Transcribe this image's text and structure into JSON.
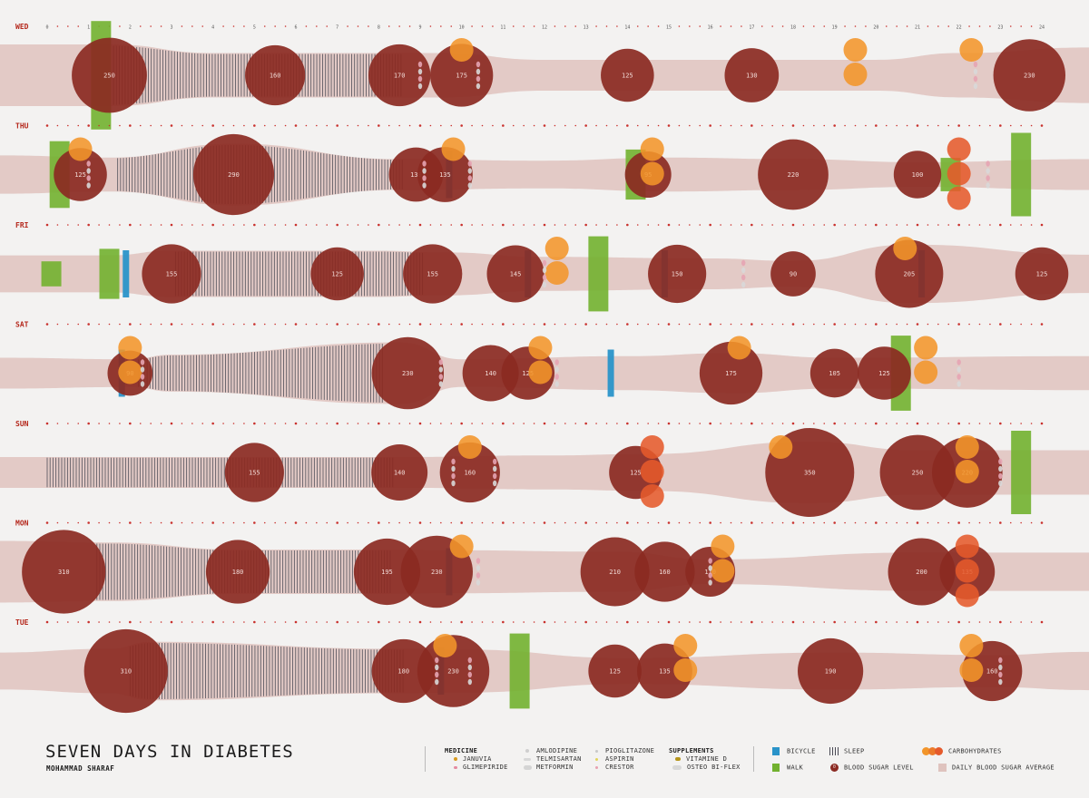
{
  "title": "SEVEN DAYS IN DIABETES",
  "author": "MOHAMMAD SHARAF",
  "legend": {
    "medicine_head": "MEDICINE",
    "januvia": "JANUVIA",
    "glimepiride": "GLIMEPIRIDE",
    "amlodipine": "AMLODIPINE",
    "telmisartan": "TELMISARTAN",
    "metformin": "METFORMIN",
    "pioglitazone": "PIOGLITAZONE",
    "aspirin": "ASPIRIN",
    "crestor": "CRESTOR",
    "supplements_head": "SUPPLEMENTS",
    "vitamin_d": "VITAMINE D",
    "osteo": "OSTEO BI-FLEX",
    "bicycle": "BICYCLE",
    "walk": "WALK",
    "sleep": "SLEEP",
    "blood_sugar": "BLOOD SUGAR LEVEL",
    "blood_sugar_marker": "0",
    "carbs": "CARBOHYDRATES",
    "daily_avg": "DAILY BLOOD SUGAR AVERAGE"
  },
  "colors": {
    "background": "#f3f2f1",
    "blood_sugar": "#8b2a22",
    "average_band": "#dfc3be",
    "sleep": "#4a4a55",
    "bicycle": "#2a93c9",
    "walk": "#72b12f",
    "carbs": "#f2952a",
    "carbs_dark": "#e55a2b",
    "day_label": "#b5281c",
    "hour_dot": "#c9302c"
  },
  "chart_data": {
    "type": "timeline",
    "x_unit": "hour of day",
    "xlim": [
      0,
      24
    ],
    "hour_ticks": [
      "0",
      "1",
      "2",
      "3",
      "4",
      "5",
      "6",
      "7",
      "8",
      "9",
      "10",
      "11",
      "12",
      "13",
      "14",
      "15",
      "16",
      "17",
      "18",
      "19",
      "20",
      "21",
      "22",
      "23",
      "24"
    ],
    "days": [
      {
        "label": "WED",
        "blood_sugar": [
          [
            1.5,
            250
          ],
          [
            5.5,
            160
          ],
          [
            8.5,
            170
          ],
          [
            10,
            175
          ],
          [
            14,
            125
          ],
          [
            17,
            130
          ],
          [
            23.7,
            230
          ]
        ],
        "average_band": [
          [
            0,
            1.0
          ],
          [
            1.5,
            1.0
          ],
          [
            4,
            0.72
          ],
          [
            8,
            0.72
          ],
          [
            9.5,
            0.72
          ],
          [
            12,
            0.5
          ],
          [
            18,
            0.5
          ],
          [
            20,
            0.5
          ],
          [
            22,
            0.72
          ],
          [
            24,
            0.9
          ]
        ],
        "sleep": [
          1.6,
          8.6
        ],
        "carbs": [
          [
            10,
            1
          ],
          [
            19.5,
            2
          ],
          [
            22.3,
            1
          ]
        ],
        "walk": [
          [
            1.3,
            1.3
          ]
        ],
        "bicycle": [],
        "medicine": [
          9,
          10.4,
          22.4
        ]
      },
      {
        "label": "THU",
        "blood_sugar": [
          [
            0.8,
            125
          ],
          [
            4.5,
            290
          ],
          [
            8.9,
            130
          ],
          [
            9.6,
            135
          ],
          [
            14.5,
            95
          ],
          [
            18,
            220
          ],
          [
            21,
            100
          ]
        ],
        "average_band": [
          [
            0,
            0.62
          ],
          [
            1.5,
            0.55
          ],
          [
            4.5,
            1.0
          ],
          [
            8.5,
            0.5
          ],
          [
            12,
            0.45
          ],
          [
            15,
            0.55
          ],
          [
            18,
            0.5
          ],
          [
            21,
            0.4
          ],
          [
            24,
            0.5
          ]
        ],
        "sleep": [
          1.7,
          8.6
        ],
        "carbs": [
          [
            0.8,
            1
          ],
          [
            9.8,
            1
          ],
          [
            14.6,
            2
          ],
          [
            22,
            3
          ]
        ],
        "walk": [
          [
            0.3,
            0.8
          ],
          [
            14.2,
            0.6
          ],
          [
            21.8,
            0.4
          ],
          [
            23.5,
            1.0
          ]
        ],
        "bicycle": [
          [
            9.7
          ]
        ],
        "medicine": [
          1,
          9.1,
          10.2,
          22.7
        ]
      },
      {
        "label": "FRI",
        "blood_sugar": [
          [
            3,
            155
          ],
          [
            7,
            125
          ],
          [
            9.3,
            155
          ],
          [
            11.3,
            145
          ],
          [
            15.2,
            150
          ],
          [
            18,
            90
          ],
          [
            20.8,
            205
          ],
          [
            24,
            125
          ]
        ],
        "average_band": [
          [
            0,
            0.6
          ],
          [
            1.5,
            0.6
          ],
          [
            3,
            0.75
          ],
          [
            8,
            0.75
          ],
          [
            9.5,
            0.7
          ],
          [
            12,
            0.55
          ],
          [
            16,
            0.5
          ],
          [
            18,
            0.42
          ],
          [
            20.8,
            0.95
          ],
          [
            24,
            0.62
          ]
        ],
        "sleep": [
          3.1,
          9.1
        ],
        "carbs": [
          [
            12.3,
            2
          ],
          [
            20.7,
            1
          ]
        ],
        "walk": [
          [
            0.1,
            0.3
          ],
          [
            1.5,
            0.6
          ],
          [
            13.3,
            0.9
          ]
        ],
        "bicycle": [
          [
            1.9
          ],
          [
            11.6
          ],
          [
            14.9
          ],
          [
            21.1
          ]
        ],
        "medicine": [
          12,
          16.8
        ]
      },
      {
        "label": "SAT",
        "blood_sugar": [
          [
            2,
            90
          ],
          [
            8.7,
            230
          ],
          [
            10.7,
            140
          ],
          [
            11.6,
            125
          ],
          [
            16.5,
            175
          ],
          [
            19,
            105
          ],
          [
            20.2,
            125
          ]
        ],
        "average_band": [
          [
            0,
            0.5
          ],
          [
            2,
            0.45
          ],
          [
            3,
            0.6
          ],
          [
            8.5,
            1.0
          ],
          [
            10,
            0.45
          ],
          [
            14,
            0.55
          ],
          [
            16.5,
            0.65
          ],
          [
            19,
            0.5
          ],
          [
            24,
            0.55
          ]
        ],
        "sleep": [
          2.2,
          8.1
        ],
        "carbs": [
          [
            2,
            2
          ],
          [
            11.9,
            2
          ],
          [
            16.7,
            1
          ],
          [
            21.2,
            2
          ]
        ],
        "walk": [
          [
            20.6,
            0.9
          ]
        ],
        "bicycle": [
          [
            1.8
          ],
          [
            13.6
          ]
        ],
        "medicine": [
          2.3,
          9.5,
          12.3,
          22
        ]
      },
      {
        "label": "SUN",
        "blood_sugar": [
          [
            5,
            155
          ],
          [
            8.5,
            140
          ],
          [
            10.2,
            160
          ],
          [
            14.2,
            125
          ],
          [
            18.4,
            350
          ],
          [
            21,
            250
          ],
          [
            22.2,
            220
          ]
        ],
        "average_band": [
          [
            0,
            0.5
          ],
          [
            4,
            0.5
          ],
          [
            8.5,
            0.5
          ],
          [
            12,
            0.55
          ],
          [
            14.5,
            0.6
          ],
          [
            18.4,
            1.0
          ],
          [
            21,
            0.72
          ],
          [
            24,
            0.72
          ]
        ],
        "sleep": [
          0,
          8.4
        ],
        "carbs": [
          [
            10.2,
            1
          ],
          [
            14.6,
            3
          ],
          [
            17.7,
            1
          ],
          [
            22.2,
            2
          ]
        ],
        "walk": [
          [
            23.5,
            1.0
          ]
        ],
        "bicycle": [],
        "medicine": [
          9.8,
          10.8,
          23
        ]
      },
      {
        "label": "MON",
        "blood_sugar": [
          [
            0.4,
            310
          ],
          [
            4.6,
            180
          ],
          [
            8.2,
            195
          ],
          [
            9.4,
            230
          ],
          [
            13.7,
            210
          ],
          [
            14.9,
            160
          ],
          [
            16,
            110
          ],
          [
            21.1,
            200
          ],
          [
            22.2,
            135
          ]
        ],
        "average_band": [
          [
            0,
            1.0
          ],
          [
            1.5,
            0.95
          ],
          [
            4.6,
            0.72
          ],
          [
            8.2,
            0.72
          ],
          [
            9.5,
            0.7
          ],
          [
            13.7,
            0.65
          ],
          [
            16,
            0.4
          ],
          [
            21,
            0.62
          ],
          [
            24,
            0.62
          ]
        ],
        "sleep": [
          1.2,
          8.3
        ],
        "carbs": [
          [
            10,
            1
          ],
          [
            16.3,
            2
          ],
          [
            22.2,
            3
          ]
        ],
        "walk": [],
        "bicycle": [
          [
            9.7
          ]
        ],
        "medicine": [
          10.4,
          16
        ]
      },
      {
        "label": "TUE",
        "blood_sugar": [
          [
            1.9,
            310
          ],
          [
            8.6,
            180
          ],
          [
            9.8,
            230
          ],
          [
            13.7,
            125
          ],
          [
            14.9,
            135
          ],
          [
            18.9,
            190
          ],
          [
            22.8,
            160
          ]
        ],
        "average_band": [
          [
            0,
            0.6
          ],
          [
            1.5,
            0.72
          ],
          [
            2.5,
            0.95
          ],
          [
            8.5,
            0.72
          ],
          [
            10,
            0.7
          ],
          [
            14,
            0.42
          ],
          [
            19,
            0.6
          ],
          [
            22.8,
            0.52
          ],
          [
            24,
            0.62
          ]
        ],
        "sleep": [
          2,
          8.6
        ],
        "carbs": [
          [
            9.6,
            1
          ],
          [
            15.4,
            2
          ],
          [
            22.3,
            2
          ]
        ],
        "walk": [
          [
            11.4,
            0.9
          ]
        ],
        "bicycle": [
          [
            9.5
          ]
        ],
        "medicine": [
          9.4,
          10.2,
          23
        ]
      }
    ]
  }
}
